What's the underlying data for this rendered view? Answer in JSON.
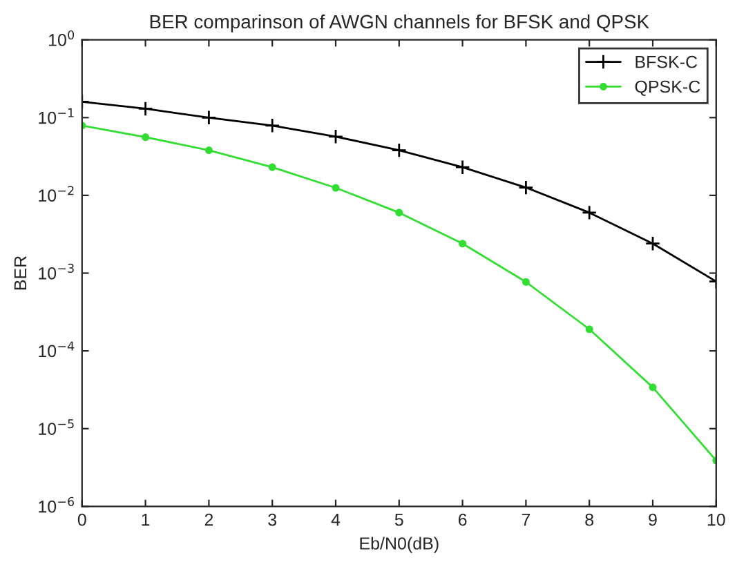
{
  "chart_data": {
    "type": "line",
    "title": "BER comparinson of AWGN channels for BFSK and QPSK",
    "xlabel": "Eb/N0(dB)",
    "ylabel": "BER",
    "x": [
      0,
      1,
      2,
      3,
      4,
      5,
      6,
      7,
      8,
      9,
      10
    ],
    "series": [
      {
        "name": "BFSK-C",
        "color": "#000000",
        "marker": "cross",
        "values": [
          0.16,
          0.13,
          0.1,
          0.079,
          0.057,
          0.038,
          0.023,
          0.0126,
          0.006,
          0.0024,
          0.00078
        ]
      },
      {
        "name": "QPSK-C",
        "color": "#33dd33",
        "marker": "circle",
        "values": [
          0.079,
          0.056,
          0.038,
          0.023,
          0.0125,
          0.006,
          0.0024,
          0.00077,
          0.00019,
          3.4e-05,
          3.9e-06
        ]
      }
    ],
    "log": "y",
    "xlim": [
      0,
      10
    ],
    "ylim": [
      1e-06,
      1
    ],
    "xticks": [
      0,
      1,
      2,
      3,
      4,
      5,
      6,
      7,
      8,
      9,
      10
    ],
    "yticks": [
      {
        "value": 1e-06,
        "label": "10$^{−6}$"
      },
      {
        "value": 1e-05,
        "label": "10$^{−5}$"
      },
      {
        "value": 0.0001,
        "label": "10$^{−4}$"
      },
      {
        "value": 0.001,
        "label": "10$^{−3}$"
      },
      {
        "value": 0.01,
        "label": "10$^{−2}$"
      },
      {
        "value": 0.1,
        "label": "10$^{−1}$"
      },
      {
        "value": 1,
        "label": "10$^{0}$"
      }
    ],
    "grid": false,
    "legend": "top right",
    "line_style": "solid"
  }
}
